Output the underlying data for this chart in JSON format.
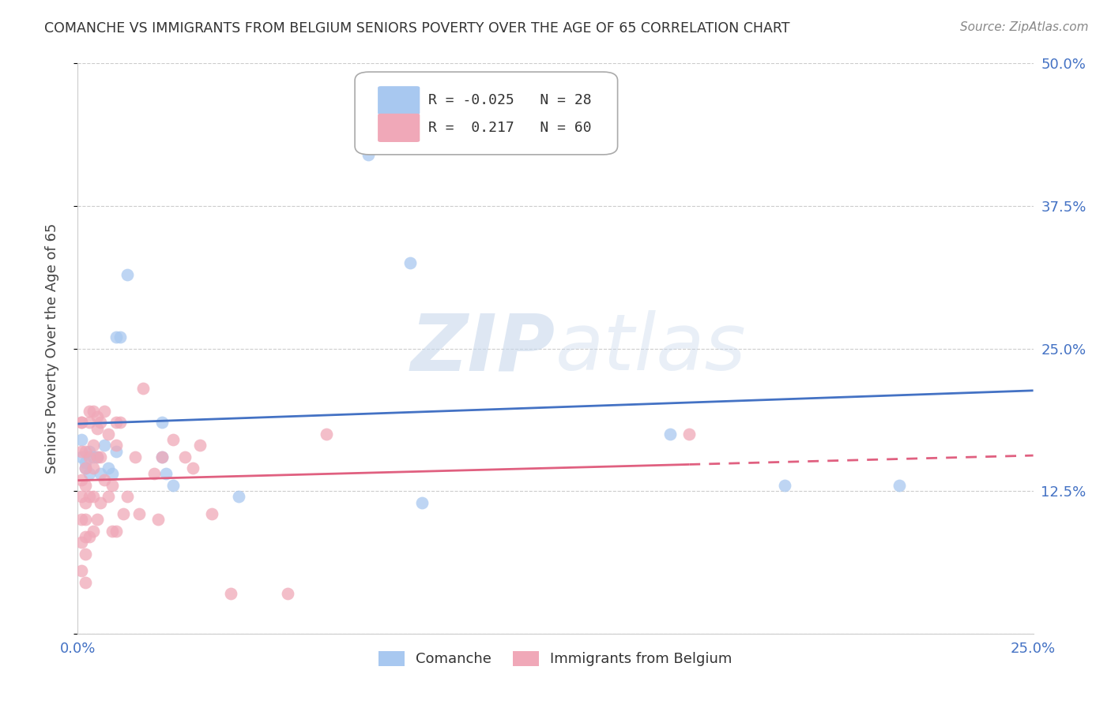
{
  "title": "COMANCHE VS IMMIGRANTS FROM BELGIUM SENIORS POVERTY OVER THE AGE OF 65 CORRELATION CHART",
  "source": "Source: ZipAtlas.com",
  "ylabel": "Seniors Poverty Over the Age of 65",
  "xlim": [
    0.0,
    0.25
  ],
  "ylim": [
    0.0,
    0.5
  ],
  "yticks": [
    0.0,
    0.125,
    0.25,
    0.375,
    0.5
  ],
  "ytick_labels": [
    "",
    "12.5%",
    "25.0%",
    "37.5%",
    "50.0%"
  ],
  "xticks": [
    0.0,
    0.05,
    0.1,
    0.15,
    0.2,
    0.25
  ],
  "xtick_labels": [
    "0.0%",
    "",
    "",
    "",
    "",
    "25.0%"
  ],
  "legend_blue_label": "Comanche",
  "legend_pink_label": "Immigrants from Belgium",
  "R_blue": -0.025,
  "N_blue": 28,
  "R_pink": 0.217,
  "N_pink": 60,
  "blue_color": "#a8c8f0",
  "pink_color": "#f0a8b8",
  "blue_line_color": "#4472c4",
  "pink_line_color": "#e06080",
  "watermark_zip": "ZIP",
  "watermark_atlas": "atlas",
  "blue_scatter_x": [
    0.001,
    0.001,
    0.002,
    0.002,
    0.003,
    0.003,
    0.004,
    0.005,
    0.006,
    0.007,
    0.008,
    0.009,
    0.01,
    0.01,
    0.011,
    0.013,
    0.022,
    0.022,
    0.023,
    0.025,
    0.042,
    0.075,
    0.076,
    0.087,
    0.09,
    0.155,
    0.185,
    0.215
  ],
  "blue_scatter_y": [
    0.17,
    0.155,
    0.15,
    0.145,
    0.16,
    0.14,
    0.155,
    0.155,
    0.14,
    0.165,
    0.145,
    0.14,
    0.16,
    0.26,
    0.26,
    0.315,
    0.185,
    0.155,
    0.14,
    0.13,
    0.12,
    0.44,
    0.42,
    0.325,
    0.115,
    0.175,
    0.13,
    0.13
  ],
  "pink_scatter_x": [
    0.001,
    0.001,
    0.001,
    0.001,
    0.001,
    0.001,
    0.001,
    0.001,
    0.002,
    0.002,
    0.002,
    0.002,
    0.002,
    0.002,
    0.002,
    0.002,
    0.003,
    0.003,
    0.003,
    0.003,
    0.003,
    0.004,
    0.004,
    0.004,
    0.004,
    0.004,
    0.005,
    0.005,
    0.005,
    0.005,
    0.006,
    0.006,
    0.006,
    0.007,
    0.007,
    0.008,
    0.008,
    0.009,
    0.009,
    0.01,
    0.01,
    0.01,
    0.011,
    0.012,
    0.013,
    0.015,
    0.016,
    0.017,
    0.02,
    0.021,
    0.022,
    0.025,
    0.028,
    0.03,
    0.032,
    0.035,
    0.04,
    0.055,
    0.065,
    0.16
  ],
  "pink_scatter_y": [
    0.185,
    0.185,
    0.16,
    0.135,
    0.12,
    0.1,
    0.08,
    0.055,
    0.16,
    0.145,
    0.13,
    0.115,
    0.1,
    0.085,
    0.07,
    0.045,
    0.195,
    0.185,
    0.155,
    0.12,
    0.085,
    0.195,
    0.165,
    0.145,
    0.12,
    0.09,
    0.19,
    0.18,
    0.155,
    0.1,
    0.185,
    0.155,
    0.115,
    0.195,
    0.135,
    0.175,
    0.12,
    0.13,
    0.09,
    0.185,
    0.165,
    0.09,
    0.185,
    0.105,
    0.12,
    0.155,
    0.105,
    0.215,
    0.14,
    0.1,
    0.155,
    0.17,
    0.155,
    0.145,
    0.165,
    0.105,
    0.035,
    0.035,
    0.175,
    0.175
  ]
}
